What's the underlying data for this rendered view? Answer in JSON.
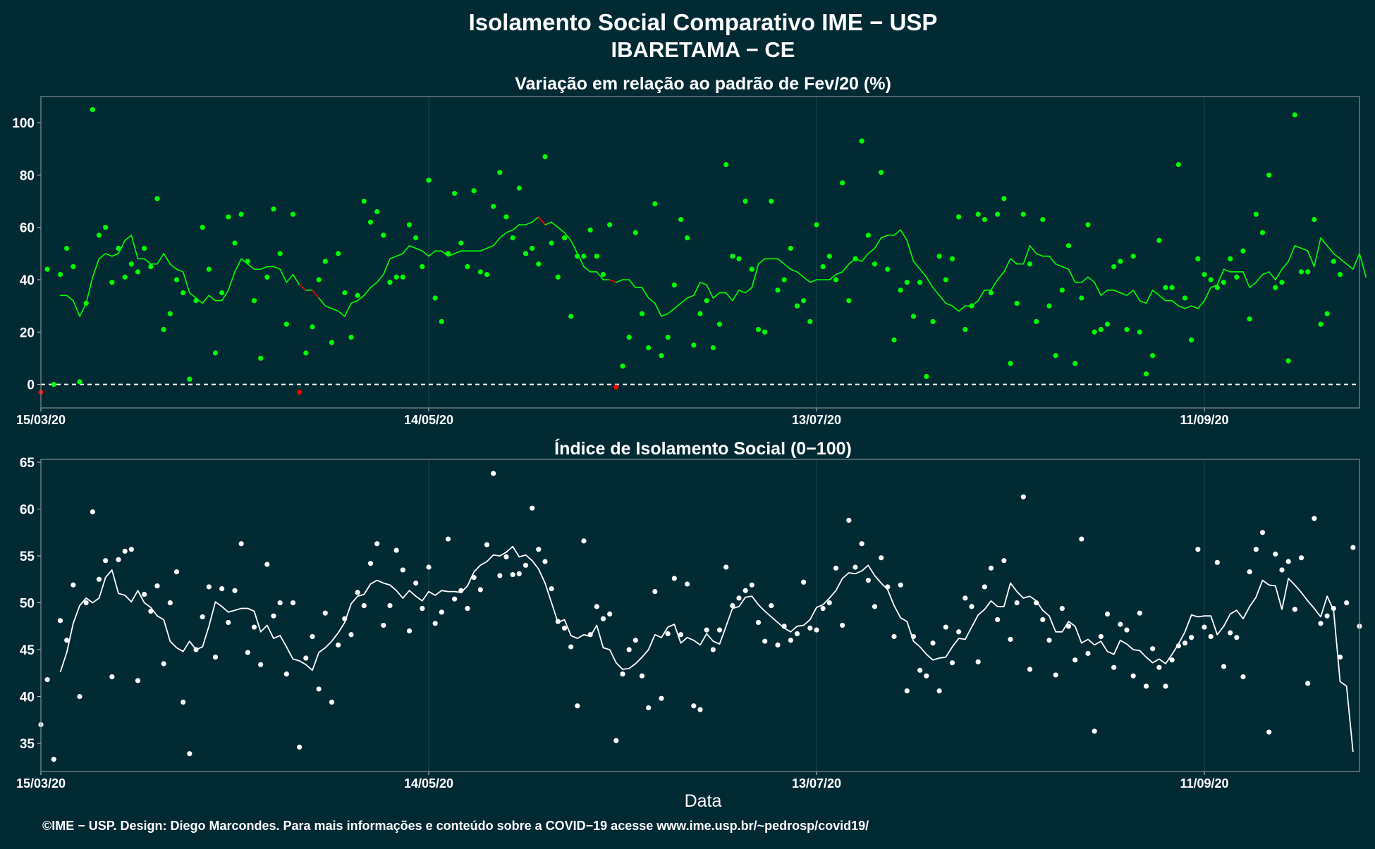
{
  "header": {
    "title": "Isolamento Social Comparativo IME − USP",
    "subtitle": "IBARETAMA − CE"
  },
  "footer": {
    "credit": "©IME − USP. Design: Diego Marcondes. Para mais informações e conteúdo sobre a COVID−19 acesse www.ime.usp.br/~pedrosp/covid19/"
  },
  "colors": {
    "background": "#022a33",
    "positive": "#00ff00",
    "negative": "#ff0000",
    "index": "#ffffff",
    "grid": "#1f4650",
    "axis_text": "#ffffff"
  },
  "chart_data": [
    {
      "type": "scatter",
      "title": "Variação em relação ao padrão de Fev/20 (%)",
      "xlabel": "",
      "ylabel": "",
      "xlim": [
        0,
        204
      ],
      "ylim": [
        -9,
        110
      ],
      "y_ticks": [
        0,
        20,
        40,
        60,
        80,
        100
      ],
      "x_ticks": [
        {
          "day": 0,
          "label": "15/03/20"
        },
        {
          "day": 60,
          "label": "14/05/20"
        },
        {
          "day": 120,
          "label": "13/07/20"
        },
        {
          "day": 180,
          "label": "11/09/20"
        }
      ],
      "reference_line": {
        "y": 0,
        "style": "dashed"
      },
      "grid": true,
      "x_start_date": "2020-03-15",
      "x_step": "1 day",
      "points": [
        -3,
        44,
        0,
        42,
        52,
        45,
        1,
        31,
        105,
        57,
        60,
        39,
        52,
        41,
        46,
        43,
        52,
        45,
        71,
        21,
        27,
        40,
        35,
        2,
        32,
        60,
        44,
        12,
        35,
        64,
        54,
        65,
        47,
        32,
        10,
        41,
        67,
        50,
        23,
        65,
        -3,
        12,
        22,
        40,
        47,
        16,
        50,
        35,
        18,
        34,
        70,
        62,
        66,
        57,
        39,
        41,
        41,
        61,
        56,
        45,
        78,
        33,
        24,
        50,
        73,
        54,
        45,
        74,
        43,
        42,
        68,
        81,
        64,
        56,
        75,
        50,
        52,
        46,
        87,
        54,
        41,
        56,
        26,
        49,
        49,
        59,
        49,
        42,
        61,
        -1,
        7,
        18,
        58,
        27,
        14,
        69,
        11,
        18,
        38,
        63,
        56,
        15,
        27,
        32,
        14,
        23,
        84,
        49,
        48,
        70,
        44,
        21,
        20,
        70,
        36,
        40,
        52,
        30,
        32,
        24,
        61,
        45,
        49,
        40,
        77,
        32,
        48,
        93,
        57,
        46,
        81,
        44,
        17,
        36,
        39,
        26,
        39,
        3,
        24,
        49,
        40,
        48,
        64,
        21,
        30,
        65,
        63,
        35,
        65,
        71,
        8,
        31,
        65,
        46,
        24,
        63,
        30,
        11,
        36,
        53,
        8,
        33,
        61,
        20,
        21,
        23,
        45,
        47,
        21,
        49,
        20,
        4,
        11,
        55,
        37,
        37,
        84,
        33,
        17,
        48,
        42,
        40,
        37,
        39,
        48,
        41,
        51,
        25,
        65,
        58,
        80,
        37,
        39,
        9,
        103,
        43,
        43,
        63,
        23,
        27,
        47,
        42
      ],
      "moving_average": {
        "start": 3,
        "values": [
          34,
          34,
          32,
          26,
          31,
          41,
          48,
          50,
          49,
          50,
          55,
          57,
          48,
          48,
          46,
          46,
          50,
          46,
          44,
          43,
          35,
          33,
          31,
          34,
          32,
          32,
          36,
          43,
          48,
          46,
          44,
          44,
          45,
          45,
          44,
          39,
          42,
          38,
          36,
          36,
          33,
          30,
          29,
          28,
          26,
          31,
          32,
          34,
          37,
          39,
          42,
          48,
          49,
          50,
          53,
          52,
          51,
          49,
          51,
          51,
          49,
          50,
          51,
          51,
          51,
          51,
          52,
          53,
          56,
          58,
          59,
          61,
          61,
          62,
          64,
          61,
          62,
          60,
          58,
          55,
          50,
          45,
          43,
          43,
          40,
          40,
          39,
          40,
          40,
          37,
          37,
          33,
          31,
          26,
          27,
          29,
          31,
          33,
          34,
          39,
          38,
          33,
          35,
          35,
          32,
          36,
          35,
          37,
          46,
          48,
          48,
          48,
          46,
          44,
          43,
          41,
          39,
          40,
          40,
          40,
          42,
          43,
          46,
          48,
          47,
          50,
          52,
          56,
          57,
          57,
          59,
          55,
          47,
          44,
          41,
          37,
          34,
          31,
          30,
          28,
          30,
          30,
          32,
          36,
          36,
          40,
          43,
          48,
          46,
          46,
          53,
          50,
          49,
          49,
          46,
          45,
          44,
          39,
          39,
          41,
          39,
          34,
          36,
          36,
          35,
          34,
          36,
          32,
          31,
          36,
          34,
          32,
          32,
          30,
          29,
          30,
          29,
          32,
          37,
          38,
          44,
          43,
          43,
          43,
          37,
          39,
          42,
          43,
          40,
          44,
          47,
          53,
          52,
          51,
          45,
          56,
          53,
          50,
          48,
          46,
          44,
          50,
          41
        ]
      }
    },
    {
      "type": "scatter",
      "title": "Índice de Isolamento Social (0−100)",
      "xlabel": "Data",
      "ylabel": "",
      "xlim": [
        0,
        204
      ],
      "ylim": [
        32,
        65.3
      ],
      "y_ticks": [
        35,
        40,
        45,
        50,
        55,
        60,
        65
      ],
      "x_ticks": [
        {
          "day": 0,
          "label": "15/03/20"
        },
        {
          "day": 60,
          "label": "14/05/20"
        },
        {
          "day": 120,
          "label": "13/07/20"
        },
        {
          "day": 180,
          "label": "11/09/20"
        }
      ],
      "grid": true,
      "x_start_date": "2020-03-15",
      "x_step": "1 day",
      "points": [
        37.0,
        41.8,
        33.3,
        48.1,
        46.0,
        51.9,
        40.0,
        50.0,
        59.7,
        52.5,
        54.5,
        42.1,
        54.6,
        55.5,
        55.7,
        41.7,
        50.9,
        49.1,
        51.8,
        43.5,
        50.0,
        53.3,
        39.4,
        33.9,
        45.0,
        48.5,
        51.7,
        44.2,
        51.5,
        47.9,
        51.3,
        56.3,
        44.7,
        47.4,
        43.4,
        54.1,
        48.6,
        50.0,
        42.4,
        50.0,
        34.6,
        44.1,
        46.4,
        40.8,
        48.9,
        39.4,
        45.5,
        48.3,
        46.6,
        51.1,
        49.7,
        54.2,
        56.3,
        47.6,
        49.7,
        55.6,
        53.5,
        47.0,
        52.1,
        49.4,
        53.8,
        47.8,
        49.0,
        56.8,
        50.4,
        51.3,
        49.4,
        52.7,
        51.4,
        56.2,
        63.8,
        52.9,
        54.9,
        53.0,
        53.1,
        54.0,
        60.1,
        55.7,
        54.4,
        51.5,
        48.0,
        47.3,
        45.3,
        39.0,
        56.6,
        46.6,
        49.6,
        48.3,
        48.8,
        35.3,
        42.4,
        45.0,
        46.0,
        42.2,
        38.8,
        51.2,
        39.8,
        46.7,
        52.6,
        46.6,
        52.0,
        39.0,
        38.6,
        47.1,
        45.0,
        47.1,
        53.8,
        49.7,
        50.5,
        51.3,
        51.9,
        47.9,
        45.9,
        49.7,
        45.5,
        47.5,
        46.0,
        46.7,
        52.2,
        47.3,
        47.1,
        49.4,
        50.0,
        53.7,
        47.6,
        58.8,
        53.8,
        56.3,
        52.4,
        49.6,
        54.8,
        51.7,
        46.4,
        51.9,
        40.6,
        46.4,
        42.8,
        42.2,
        45.7,
        40.6,
        47.4,
        43.6,
        46.9,
        50.5,
        49.6,
        43.7,
        51.7,
        53.7,
        48.2,
        54.5,
        46.1,
        50.0,
        61.3,
        42.9,
        50.0,
        48.2,
        46.0,
        42.3,
        49.4,
        47.5,
        43.9,
        56.8,
        44.6,
        36.3,
        46.4,
        48.8,
        43.1,
        47.7,
        47.1,
        42.2,
        48.9,
        41.1,
        45.1,
        43.1,
        41.1,
        43.9,
        45.4,
        45.7,
        46.3,
        55.7,
        47.4,
        46.4,
        54.3,
        43.2,
        46.8,
        46.3,
        42.1,
        53.3,
        55.7,
        57.5,
        36.2,
        55.2,
        53.5,
        54.4,
        49.3,
        54.8,
        41.4,
        59.0,
        47.8,
        48.6,
        49.4,
        44.2,
        50.0,
        55.9,
        47.5
      ],
      "moving_average": {
        "start": 3,
        "values": [
          42.6,
          44.7,
          47.8,
          49.7,
          50.5,
          50.0,
          50.5,
          52.7,
          53.5,
          51.0,
          50.8,
          50.1,
          51.3,
          50.0,
          49.5,
          48.6,
          48.2,
          45.9,
          45.2,
          44.8,
          45.9,
          45.0,
          45.3,
          47.5,
          50.1,
          49.6,
          49.0,
          49.2,
          49.4,
          49.4,
          49.1,
          46.9,
          47.6,
          46.2,
          46.5,
          45.3,
          44.0,
          43.8,
          43.4,
          42.8,
          44.7,
          45.2,
          45.9,
          46.8,
          47.9,
          49.9,
          50.7,
          50.9,
          52.0,
          52.4,
          52.1,
          51.9,
          51.3,
          50.5,
          51.3,
          50.7,
          50.2,
          51.2,
          50.8,
          51.3,
          51.2,
          51.2,
          51.1,
          51.8,
          53.3,
          54.0,
          54.4,
          55.1,
          55.0,
          55.4,
          56.0,
          54.9,
          55.1,
          54.5,
          53.6,
          52.1,
          50.0,
          47.9,
          48.2,
          46.5,
          46.2,
          46.6,
          46.4,
          47.6,
          45.2,
          45.0,
          43.6,
          42.9,
          43.0,
          43.5,
          44.2,
          45.0,
          46.6,
          46.3,
          47.4,
          47.7,
          45.7,
          46.3,
          46.0,
          45.5,
          46.7,
          45.9,
          45.6,
          47.5,
          49.4,
          49.6,
          50.6,
          50.7,
          49.8,
          49.1,
          48.5,
          47.9,
          47.3,
          46.9,
          47.5,
          47.6,
          48.2,
          49.5,
          49.8,
          50.5,
          51.3,
          52.6,
          53.2,
          53.1,
          53.4,
          54.0,
          52.9,
          52.1,
          51.4,
          49.7,
          48.4,
          48.0,
          45.9,
          45.3,
          44.5,
          43.9,
          44.1,
          44.2,
          45.3,
          46.2,
          46.1,
          47.4,
          48.7,
          49.3,
          50.2,
          49.6,
          49.6,
          52.1,
          51.2,
          50.5,
          50.7,
          50.2,
          49.2,
          48.6,
          46.9,
          46.9,
          48.0,
          47.5,
          45.7,
          46.1,
          45.5,
          45.9,
          44.8,
          44.5,
          46.0,
          45.6,
          45.0,
          44.9,
          44.2,
          43.6,
          44.0,
          43.5,
          44.5,
          45.6,
          46.9,
          48.7,
          48.5,
          48.6,
          48.6,
          46.6,
          47.5,
          48.8,
          49.2,
          48.3,
          49.6,
          50.6,
          52.4,
          51.9,
          51.8,
          49.3,
          52.6,
          51.9,
          51.1,
          50.2,
          49.4,
          48.5,
          50.7,
          49.2,
          41.6,
          41.1,
          34.1
        ]
      }
    }
  ]
}
